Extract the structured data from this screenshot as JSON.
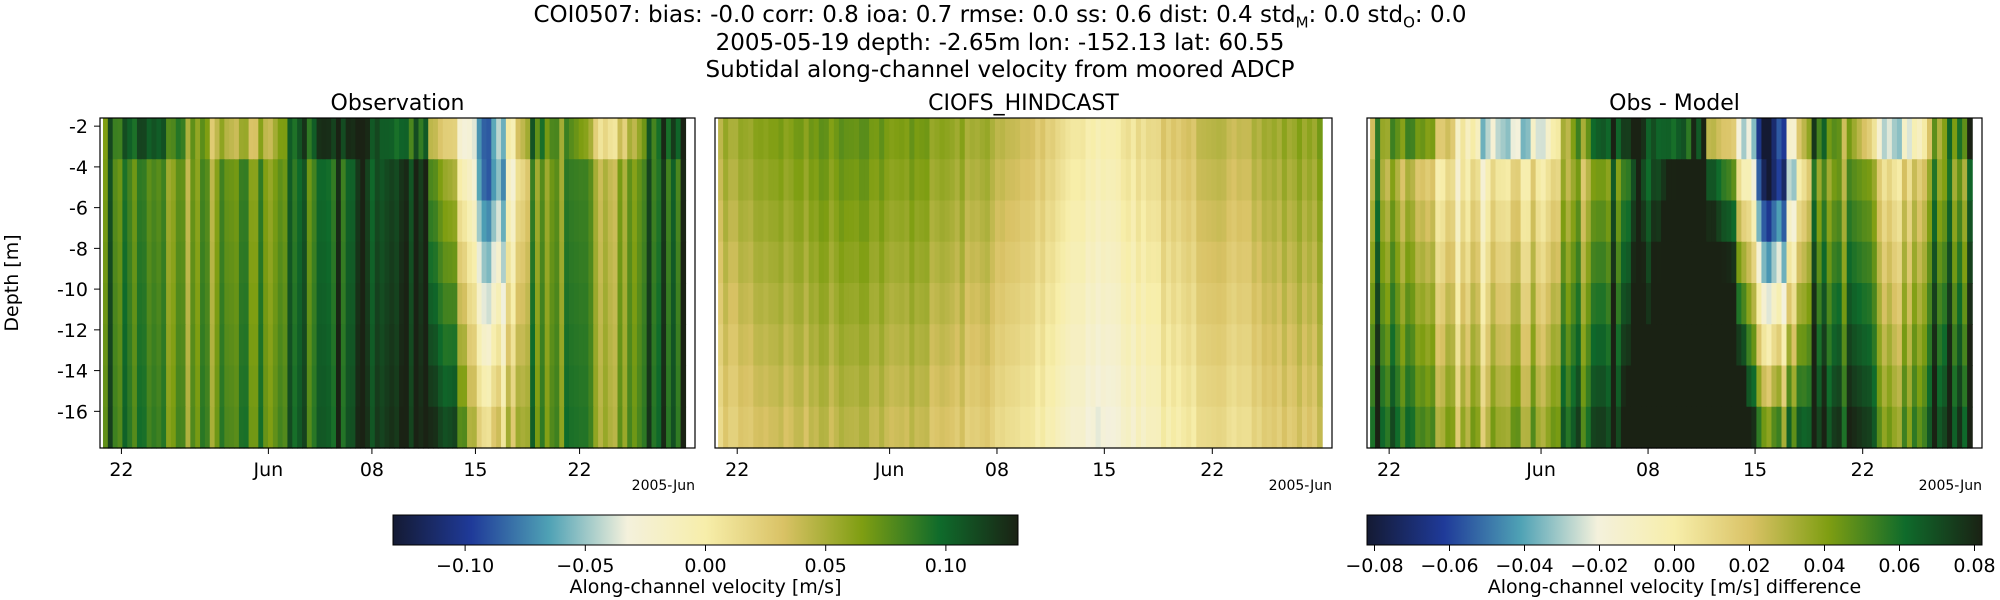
{
  "figure": {
    "title_line1": "COI0507: bias: -0.0  corr: 0.8  ioa: 0.7  rmse: 0.0  ss: 0.6  dist: 0.4  std",
    "title_std_m_sub": "M",
    "title_std_m_val": ": 0.0  std",
    "title_std_o_sub": "O",
    "title_std_o_val": ": 0.0",
    "title_line2": "2005-05-19 depth: -2.65m lon: -152.13 lat: 60.55",
    "title_line3": "Subtidal along-channel velocity from moored ADCP"
  },
  "chart_data": [
    {
      "type": "heatmap",
      "title": "Observation",
      "ylabel": "Depth [m]",
      "ylim": [
        -17.8,
        -1.6
      ],
      "yticks": [
        "-2",
        "-4",
        "-6",
        "-8",
        "-10",
        "-12",
        "-14",
        "-16"
      ],
      "xticks": [
        "22",
        "Jun",
        "08",
        "15",
        "22"
      ],
      "x_offset_label": "2005-Jun",
      "depths": [
        -2.65,
        -4.65,
        -6.65,
        -8.65,
        -10.65,
        -12.65,
        -14.65,
        -16.65
      ],
      "colormap": "velocity",
      "vmin": -0.13,
      "vmax": 0.13
    },
    {
      "type": "heatmap",
      "title": "CIOFS_HINDCAST",
      "xticks": [
        "22",
        "Jun",
        "08",
        "15",
        "22"
      ],
      "x_offset_label": "2005-Jun",
      "colormap": "velocity",
      "vmin": -0.13,
      "vmax": 0.13
    },
    {
      "type": "heatmap",
      "title": "Obs - Model",
      "xticks": [
        "22",
        "Jun",
        "08",
        "15",
        "22"
      ],
      "x_offset_label": "2005-Jun",
      "colormap": "difference",
      "vmin": -0.082,
      "vmax": 0.082
    }
  ],
  "colorbars": [
    {
      "label": "Along-channel velocity [m/s]",
      "ticks": [
        "−0.10",
        "−0.05",
        "0.00",
        "0.05",
        "0.10"
      ],
      "tick_values": [
        -0.1,
        -0.05,
        0.0,
        0.05,
        0.1
      ],
      "vmin": -0.13,
      "vmax": 0.13
    },
    {
      "label": "Along-channel velocity [m/s] difference",
      "ticks": [
        "−0.08",
        "−0.06",
        "−0.04",
        "−0.02",
        "0.00",
        "0.02",
        "0.04",
        "0.06",
        "0.08"
      ],
      "tick_values": [
        -0.08,
        -0.06,
        -0.04,
        -0.02,
        0.0,
        0.02,
        0.04,
        0.06,
        0.08
      ],
      "vmin": -0.082,
      "vmax": 0.082
    }
  ],
  "colors": {
    "cmap_stops": [
      "#141a33",
      "#1f3a99",
      "#4fa2b5",
      "#f4f1dc",
      "#f7eeaa",
      "#d9c265",
      "#7f9e12",
      "#0f6b2b",
      "#1a2214"
    ]
  }
}
